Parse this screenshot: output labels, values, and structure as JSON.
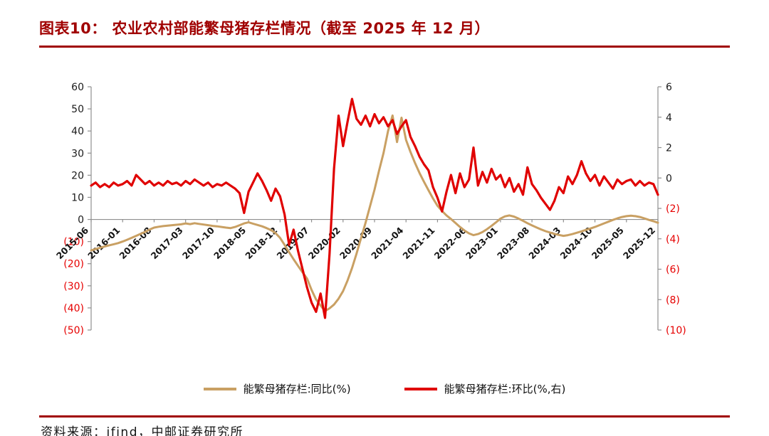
{
  "header": {
    "title": "图表10： 农业农村部能繁母猪存栏情况（截至 2025 年 12 月）"
  },
  "footer": {
    "source": "资料来源：ifind，中邮证券研究所"
  },
  "colors": {
    "accent_dark_red": "#A00000",
    "negative_tick_red": "#E60000",
    "axis_gray": "#8F8F8F",
    "series_yoy_tan": "#C9A063",
    "series_mom_red": "#E00000"
  },
  "chart_data": {
    "type": "line",
    "title": "农业农村部能繁母猪存栏情况（截至 2025 年 12 月）",
    "xlabel": "",
    "ylabel_left": "能繁母猪存栏:同比(%)",
    "ylabel_right": "能繁母猪存栏:环比(%,右)",
    "grid": false,
    "legend_position": "bottom",
    "x_start": "2015-06",
    "x_end": "2025-12",
    "x_frequency": "monthly",
    "x_tick_step": 7,
    "x_tick_labels": [
      "2015-06",
      "2016-01",
      "2016-08",
      "2017-03",
      "2017-10",
      "2018-05",
      "2018-12",
      "2019-07",
      "2020-02",
      "2020-09",
      "2021-04",
      "2021-11",
      "2022-06",
      "2023-01",
      "2023-08",
      "2024-03",
      "2024-10",
      "2025-05",
      "2025-12"
    ],
    "left_axis": {
      "max": 60,
      "min": -50,
      "ticks": [
        60,
        50,
        40,
        30,
        20,
        10,
        0,
        -10,
        -20,
        -30,
        -40,
        -50
      ]
    },
    "right_axis": {
      "max": 6,
      "min": -10,
      "ticks": [
        6,
        4,
        2,
        0,
        -2,
        -4,
        -6,
        -8,
        -10
      ]
    },
    "series": [
      {
        "name": "能繁母猪存栏:同比(%)",
        "axis": "left",
        "color": "#C9A063",
        "width": 3,
        "values": [
          -14.0,
          -13.4,
          -12.8,
          -12.2,
          -11.7,
          -11.2,
          -10.7,
          -10.0,
          -9.2,
          -8.3,
          -7.4,
          -6.5,
          -5.6,
          -4.6,
          -3.7,
          -3.3,
          -3.0,
          -2.8,
          -2.6,
          -2.4,
          -2.2,
          -1.8,
          -2.1,
          -1.7,
          -2.0,
          -2.3,
          -2.6,
          -2.9,
          -3.1,
          -3.4,
          -3.7,
          -3.9,
          -3.4,
          -2.6,
          -1.8,
          -1.3,
          -1.9,
          -2.5,
          -3.1,
          -3.9,
          -4.8,
          -6.2,
          -8.3,
          -11.5,
          -14.8,
          -18.0,
          -21.0,
          -23.9,
          -26.7,
          -31.9,
          -36.2,
          -38.9,
          -41.4,
          -40.2,
          -38.5,
          -35.8,
          -32.4,
          -27.6,
          -22.0,
          -15.5,
          -8.5,
          -1.5,
          6.0,
          13.5,
          22.0,
          30.0,
          40.0,
          47.0,
          35.0,
          46.0,
          36.0,
          30.5,
          25.5,
          21.0,
          17.0,
          13.2,
          9.5,
          6.2,
          3.8,
          1.8,
          0.2,
          -1.6,
          -3.4,
          -5.0,
          -6.3,
          -7.1,
          -6.6,
          -5.7,
          -4.4,
          -2.9,
          -1.3,
          0.4,
          1.4,
          1.8,
          1.3,
          0.4,
          -0.6,
          -1.7,
          -2.7,
          -3.6,
          -4.5,
          -5.3,
          -5.9,
          -6.5,
          -7.0,
          -7.4,
          -7.1,
          -6.6,
          -6.0,
          -5.4,
          -4.7,
          -4.1,
          -3.4,
          -2.6,
          -1.8,
          -1.0,
          -0.2,
          0.5,
          1.1,
          1.5,
          1.7,
          1.5,
          1.1,
          0.5,
          -0.2,
          -0.8,
          -1.5
        ]
      },
      {
        "name": "能繁母猪存栏:环比(%,右)",
        "axis": "right",
        "color": "#E00000",
        "width": 3.2,
        "values": [
          -0.5,
          -0.3,
          -0.6,
          -0.4,
          -0.6,
          -0.3,
          -0.5,
          -0.4,
          -0.2,
          -0.5,
          0.2,
          -0.1,
          -0.4,
          -0.2,
          -0.5,
          -0.3,
          -0.5,
          -0.2,
          -0.4,
          -0.3,
          -0.5,
          -0.2,
          -0.4,
          -0.1,
          -0.3,
          -0.5,
          -0.3,
          -0.6,
          -0.4,
          -0.5,
          -0.3,
          -0.5,
          -0.7,
          -1.0,
          -2.3,
          -0.9,
          -0.3,
          0.3,
          -0.2,
          -0.8,
          -1.5,
          -0.7,
          -1.2,
          -2.4,
          -4.4,
          -3.4,
          -4.8,
          -6.0,
          -7.2,
          -8.2,
          -8.8,
          -7.6,
          -9.2,
          -5.0,
          0.6,
          4.1,
          2.1,
          3.7,
          5.2,
          3.9,
          3.5,
          4.1,
          3.4,
          4.2,
          3.6,
          4.0,
          3.4,
          3.8,
          2.9,
          3.4,
          3.8,
          2.7,
          2.1,
          1.4,
          0.9,
          0.5,
          -0.6,
          -1.3,
          -2.2,
          -0.9,
          0.2,
          -1.0,
          0.3,
          -0.6,
          -0.1,
          2.0,
          -0.5,
          0.4,
          -0.3,
          0.6,
          -0.1,
          0.2,
          -0.6,
          0.0,
          -0.9,
          -0.4,
          -1.1,
          0.7,
          -0.4,
          -0.8,
          -1.3,
          -1.7,
          -2.1,
          -1.5,
          -0.6,
          -1.0,
          0.1,
          -0.4,
          0.2,
          1.1,
          0.3,
          -0.2,
          0.2,
          -0.5,
          0.1,
          -0.3,
          -0.7,
          -0.1,
          -0.4,
          -0.2,
          -0.1,
          -0.5,
          -0.2,
          -0.5,
          -0.3,
          -0.4,
          -1.1
        ]
      }
    ]
  }
}
